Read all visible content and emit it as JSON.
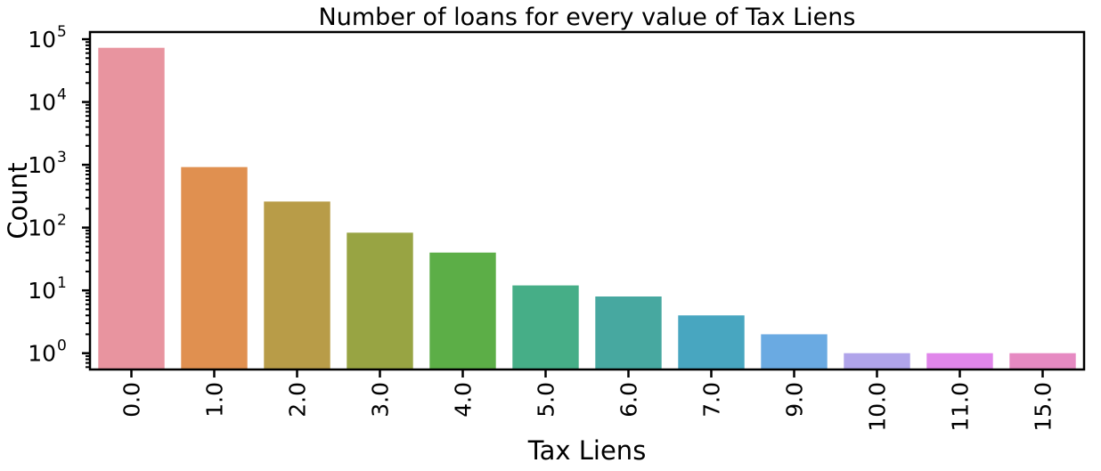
{
  "chart_data": {
    "type": "bar",
    "title": "Number of loans for every value of Tax Liens",
    "xlabel": "Tax Liens",
    "ylabel": "Count",
    "yscale": "log",
    "ylim": [
      0.55,
      130000
    ],
    "categories": [
      "0.0",
      "1.0",
      "2.0",
      "3.0",
      "4.0",
      "5.0",
      "6.0",
      "7.0",
      "9.0",
      "10.0",
      "11.0",
      "15.0"
    ],
    "values": [
      73000,
      920,
      260,
      83,
      40,
      12,
      8,
      4,
      2,
      1,
      1,
      1
    ],
    "colors": [
      "#e8949f",
      "#e09050",
      "#b89c48",
      "#98a443",
      "#5cae47",
      "#46ae87",
      "#47a8a0",
      "#48a6c0",
      "#6aaae2",
      "#b0a4ea",
      "#e086ea",
      "#e68ac2"
    ],
    "yticks": [
      {
        "base": "10",
        "exp": "0",
        "value": 1
      },
      {
        "base": "10",
        "exp": "1",
        "value": 10
      },
      {
        "base": "10",
        "exp": "2",
        "value": 100
      },
      {
        "base": "10",
        "exp": "3",
        "value": 1000
      },
      {
        "base": "10",
        "exp": "4",
        "value": 10000
      },
      {
        "base": "10",
        "exp": "5",
        "value": 100000
      }
    ],
    "grid": false,
    "legend": "none"
  }
}
